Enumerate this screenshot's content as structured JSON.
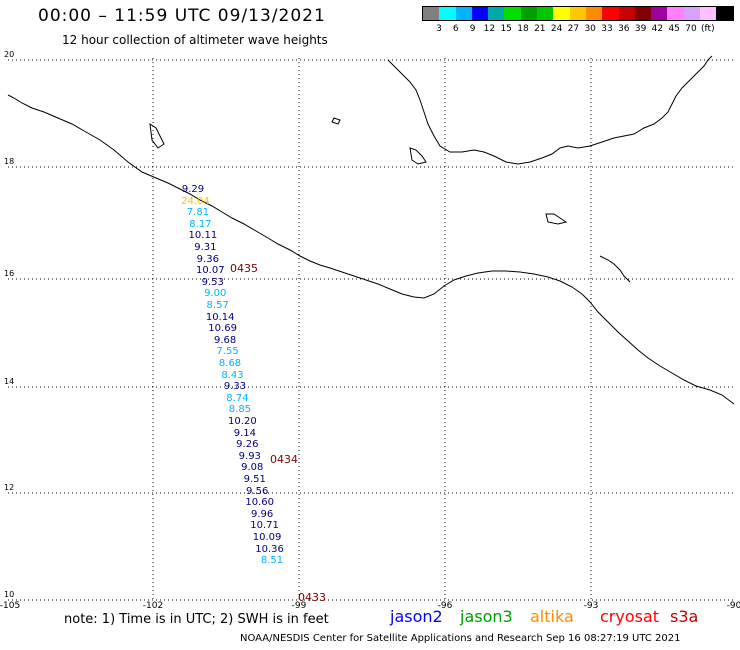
{
  "header": {
    "title": "00:00 – 11:59 UTC 09/13/2021",
    "subtitle": "12 hour collection of altimeter wave heights"
  },
  "legend": {
    "colors": [
      "#808080",
      "#00ffff",
      "#00b4ff",
      "#0000ff",
      "#00aaaa",
      "#00e000",
      "#00a000",
      "#00c800",
      "#ffff00",
      "#ffc800",
      "#ff8c00",
      "#ff0000",
      "#c80000",
      "#800000",
      "#a000a0",
      "#ff80ff",
      "#d8a0ff",
      "#ffc0ff",
      "#000000"
    ],
    "ticks": [
      "3",
      "6",
      "9",
      "12",
      "15",
      "18",
      "21",
      "24",
      "27",
      "30",
      "33",
      "36",
      "39",
      "42",
      "45",
      "70",
      "(ft)"
    ]
  },
  "axes": {
    "lat_labels": [
      "20",
      "18",
      "16",
      "14",
      "12",
      "10"
    ],
    "lon_labels": [
      "-105",
      "-102",
      "-99",
      "-96",
      "-93",
      "-90"
    ]
  },
  "wave_heights": [
    {
      "v": "9.29",
      "c": "#000080"
    },
    {
      "v": "24.04",
      "c": "#ffc000"
    },
    {
      "v": "7.81",
      "c": "#00b4ff"
    },
    {
      "v": "8.17",
      "c": "#00b4ff"
    },
    {
      "v": "10.11",
      "c": "#000080"
    },
    {
      "v": "9.31",
      "c": "#000080"
    },
    {
      "v": "9.36",
      "c": "#000080"
    },
    {
      "v": "10.07",
      "c": "#000080"
    },
    {
      "v": "9.53",
      "c": "#000080"
    },
    {
      "v": "9.00",
      "c": "#00b4ff"
    },
    {
      "v": "8.57",
      "c": "#00b4ff"
    },
    {
      "v": "10.14",
      "c": "#000080"
    },
    {
      "v": "10.69",
      "c": "#000080"
    },
    {
      "v": "9.68",
      "c": "#000080"
    },
    {
      "v": "7.55",
      "c": "#00b4ff"
    },
    {
      "v": "8.68",
      "c": "#00b4ff"
    },
    {
      "v": "8.43",
      "c": "#00b4ff"
    },
    {
      "v": "9.33",
      "c": "#000080"
    },
    {
      "v": "8.74",
      "c": "#00b4ff"
    },
    {
      "v": "8.85",
      "c": "#00b4ff"
    },
    {
      "v": "10.20",
      "c": "#000080"
    },
    {
      "v": "9.14",
      "c": "#000080"
    },
    {
      "v": "9.26",
      "c": "#000080"
    },
    {
      "v": "9.93",
      "c": "#000080"
    },
    {
      "v": "9.08",
      "c": "#000080"
    },
    {
      "v": "9.51",
      "c": "#000080"
    },
    {
      "v": "9.56",
      "c": "#000080"
    },
    {
      "v": "10.60",
      "c": "#000080"
    },
    {
      "v": "9.96",
      "c": "#000080"
    },
    {
      "v": "10.71",
      "c": "#000080"
    },
    {
      "v": "10.09",
      "c": "#000080"
    },
    {
      "v": "10.36",
      "c": "#000080"
    },
    {
      "v": "8.51",
      "c": "#00b4ff"
    }
  ],
  "pass_times": [
    "0435",
    "0434",
    "0433"
  ],
  "footer": {
    "note": "note:  1) Time is in UTC;  2) SWH is in feet",
    "satellites": [
      {
        "name": "jason2",
        "color": "#0000ff"
      },
      {
        "name": "jason3",
        "color": "#00a000"
      },
      {
        "name": "altika",
        "color": "#ff8c00"
      },
      {
        "name": "cryosat",
        "color": "#ff0000"
      },
      {
        "name": "s3a",
        "color": "#c00000"
      }
    ],
    "credit": "NOAA/NESDIS Center for Satellite Applications and Research    Sep 16 08:27:19 UTC 2021"
  }
}
